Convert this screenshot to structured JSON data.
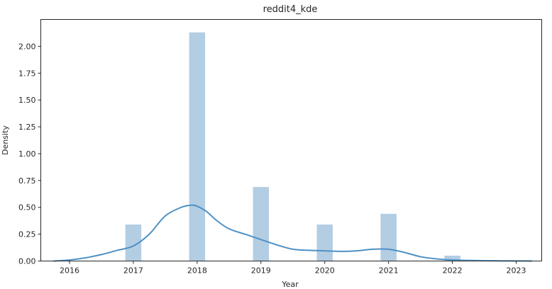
{
  "chart_data": {
    "type": "bar",
    "title": "reddit4_kde",
    "xlabel": "Year",
    "ylabel": "Density",
    "xlim": [
      2015.55,
      2023.4
    ],
    "ylim": [
      0,
      2.25
    ],
    "x_ticks": [
      2016,
      2017,
      2018,
      2019,
      2020,
      2021,
      2022,
      2023
    ],
    "y_ticks": [
      0.0,
      0.25,
      0.5,
      0.75,
      1.0,
      1.25,
      1.5,
      1.75,
      2.0
    ],
    "y_tick_labels": [
      "0.00",
      "0.25",
      "0.50",
      "0.75",
      "1.00",
      "1.25",
      "1.50",
      "1.75",
      "2.00"
    ],
    "grid": false,
    "bar_color": "#b3cde3",
    "line_color": "#4e91c4",
    "histogram": {
      "bar_width": 0.25,
      "bars": [
        {
          "x": 2017.0,
          "value": 0.34
        },
        {
          "x": 2018.0,
          "value": 2.13
        },
        {
          "x": 2019.0,
          "value": 0.69
        },
        {
          "x": 2020.0,
          "value": 0.34
        },
        {
          "x": 2021.0,
          "value": 0.44
        },
        {
          "x": 2022.0,
          "value": 0.05
        }
      ]
    },
    "kde": {
      "x": [
        2015.75,
        2016.0,
        2016.25,
        2016.5,
        2016.75,
        2017.0,
        2017.25,
        2017.5,
        2017.75,
        2017.9,
        2018.0,
        2018.15,
        2018.3,
        2018.5,
        2018.75,
        2019.0,
        2019.25,
        2019.5,
        2019.75,
        2020.0,
        2020.25,
        2020.5,
        2020.75,
        2021.0,
        2021.25,
        2021.5,
        2021.75,
        2022.0,
        2022.25,
        2022.5,
        2022.75,
        2023.0,
        2023.25
      ],
      "y": [
        0.0,
        0.01,
        0.03,
        0.06,
        0.1,
        0.14,
        0.25,
        0.42,
        0.5,
        0.52,
        0.51,
        0.46,
        0.38,
        0.3,
        0.25,
        0.2,
        0.15,
        0.11,
        0.1,
        0.095,
        0.09,
        0.095,
        0.11,
        0.11,
        0.08,
        0.04,
        0.02,
        0.01,
        0.006,
        0.003,
        0.002,
        0.001,
        0.0
      ]
    }
  }
}
